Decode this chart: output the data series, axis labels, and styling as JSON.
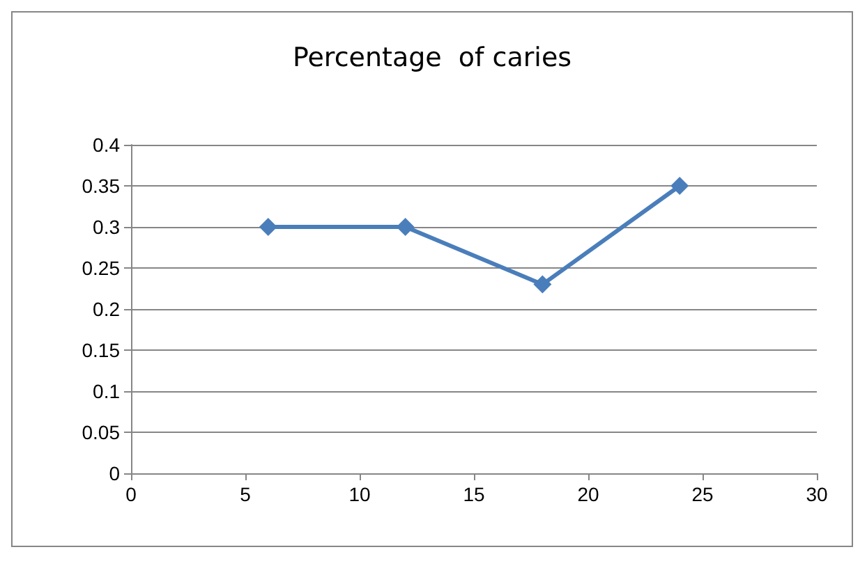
{
  "chart_data": {
    "type": "line",
    "title": "Percentage  of caries",
    "x": [
      6,
      12,
      18,
      24
    ],
    "series": [
      {
        "color": "#4a7ebb",
        "values": [
          0.3,
          0.3,
          0.23,
          0.35
        ]
      }
    ],
    "xlim": [
      0,
      30
    ],
    "xticks": [
      0,
      5,
      10,
      15,
      20,
      25,
      30
    ],
    "ylim": [
      0,
      0.4
    ],
    "yticks": [
      0,
      0.05,
      0.1,
      0.15,
      0.2,
      0.25,
      0.3,
      0.35,
      0.4
    ],
    "grid": "y",
    "marker": "diamond",
    "line_style": "solid"
  }
}
